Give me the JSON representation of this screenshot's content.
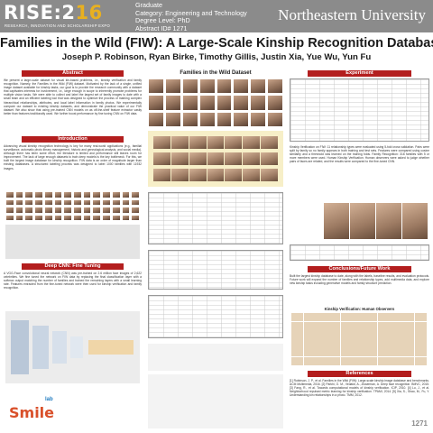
{
  "header": {
    "logo_main": "RISE:2",
    "logo_year": "16",
    "logo_sub": "RESEARCH, INNOVATION AND SCHOLARSHIP EXPO",
    "meta_lines": [
      "Graduate",
      "Category: Engineering and Technology",
      "Degree Level: PhD",
      "Abstract ID# 1271"
    ],
    "university": "Northeastern University"
  },
  "title": "Families in the Wild (FIW): A Large-Scale Kinship Recognition Database",
  "authors": "Joseph P. Robinson, Ryan Birke, Timothy Gillis, Justin Xia, Yue Wu, Yun Fu",
  "sections": {
    "abstract": "Abstract",
    "introduction": "Introduction",
    "deep_cnn": "Deep CNN: Fine Tuning",
    "experiment": "Experiment",
    "conclusions": "Conclusions/Future Work",
    "references": "References"
  },
  "figure_title": "Families in the Wild Dataset",
  "heatmap_title": "Kinship Verification: Human Observers",
  "abstract_text": "We present a large-scale dataset for visual kin-based problems, i.e., kinship verification and family recognition. Namely, the Families in the Wild (FIW) dataset. Motivated by the lack of a single, unified image dataset available for kinship tasks, our goal is to provide the research community with a dataset that captivates interests for involvement, i.e., large enough in scope to inherently promote problems for multiple vision tasks. We were able to collect and label the largest set of family images to date with a small team and an efficient labeling tool that was designed to optimize the process of marking complex hierarchical relationships, attributes, and local label information in family photos. We experimentally compare our dataset to existing kinship datasets, and demonstrate the practical value of our FIW dataset. We also show that using pre-trained CNN models on as off-the-shelf feature extractor vastly better than features traditionally used. We further boost performance by fine tuning CNN on FIW data.",
  "intro_text": "Advancing visual kinship recognition technology is key for many real-world applications (e.g., familial surveillance, automatic photo library management, historic and genealogical analysis, and social media). Although there has been some effort, the literature is limited and performance still leaves room for improvement. The lack of large enough datasets to train deep models is the key bottleneck. For this, we built the largest image database for kinship recognition. FIW data is an order of magnitude larger than existing databases. A structured labeling process was designed to label 1000 families with 11932 images.",
  "cnn_text": "A VGG-Face convolutional neural network (CNN) was pre-trained on 2.6 million face images of 2,622 celebrities. We fine tuned the network on FIW data by replacing the final classification layer with a softmax output matching the number of families and trained the remaining layers with a small learning rate. Features extracted from the fine-tuned network were then used for kinship verification and family recognition.",
  "experiment_text": "Kinship Verification on FIW: 11 relationship types were evaluated using 5-fold cross validation. Pairs were split by family so no family appears in both training and test sets. Features were compared using cosine similarity and a threshold was learned on the training folds. Family Recognition: 316 families with 5 or more members were used. Human Kinship Verification: Human observers were asked to judge whether pairs of faces are related, and the results were compared to the fine-tuned CNN.",
  "conclusions_text": "Built the largest kinship database to date, along with the labels, baseline results, and evaluation protocols. Future work will expand the number of families and relationship types, add multimedia data, and explore new kinship tasks including generative models and family structure prediction.",
  "references_text": "[1] Robinson, J. P., et al. Families in the Wild (FIW): Large-scale kinship image database and benchmarks. ACM Multimedia, 2016. [2] Parkhi, O. M., Vedaldi, A., Zisserman, A. Deep face recognition. BMVC, 2015. [3] Fang, R., et al. Towards computational models of kinship verification. ICIP, 2010. [4] Lu, J., et al. Neighborhood repulsed metric learning for kinship verification. TPAMI, 2014. [5] Xia, S., Shao, M., Fu, Y. Understanding kin relationships in a photo. TMM, 2012.",
  "footer": {
    "smile_word": "Smile",
    "smile_lab": "lab",
    "poster_number": "1271"
  }
}
